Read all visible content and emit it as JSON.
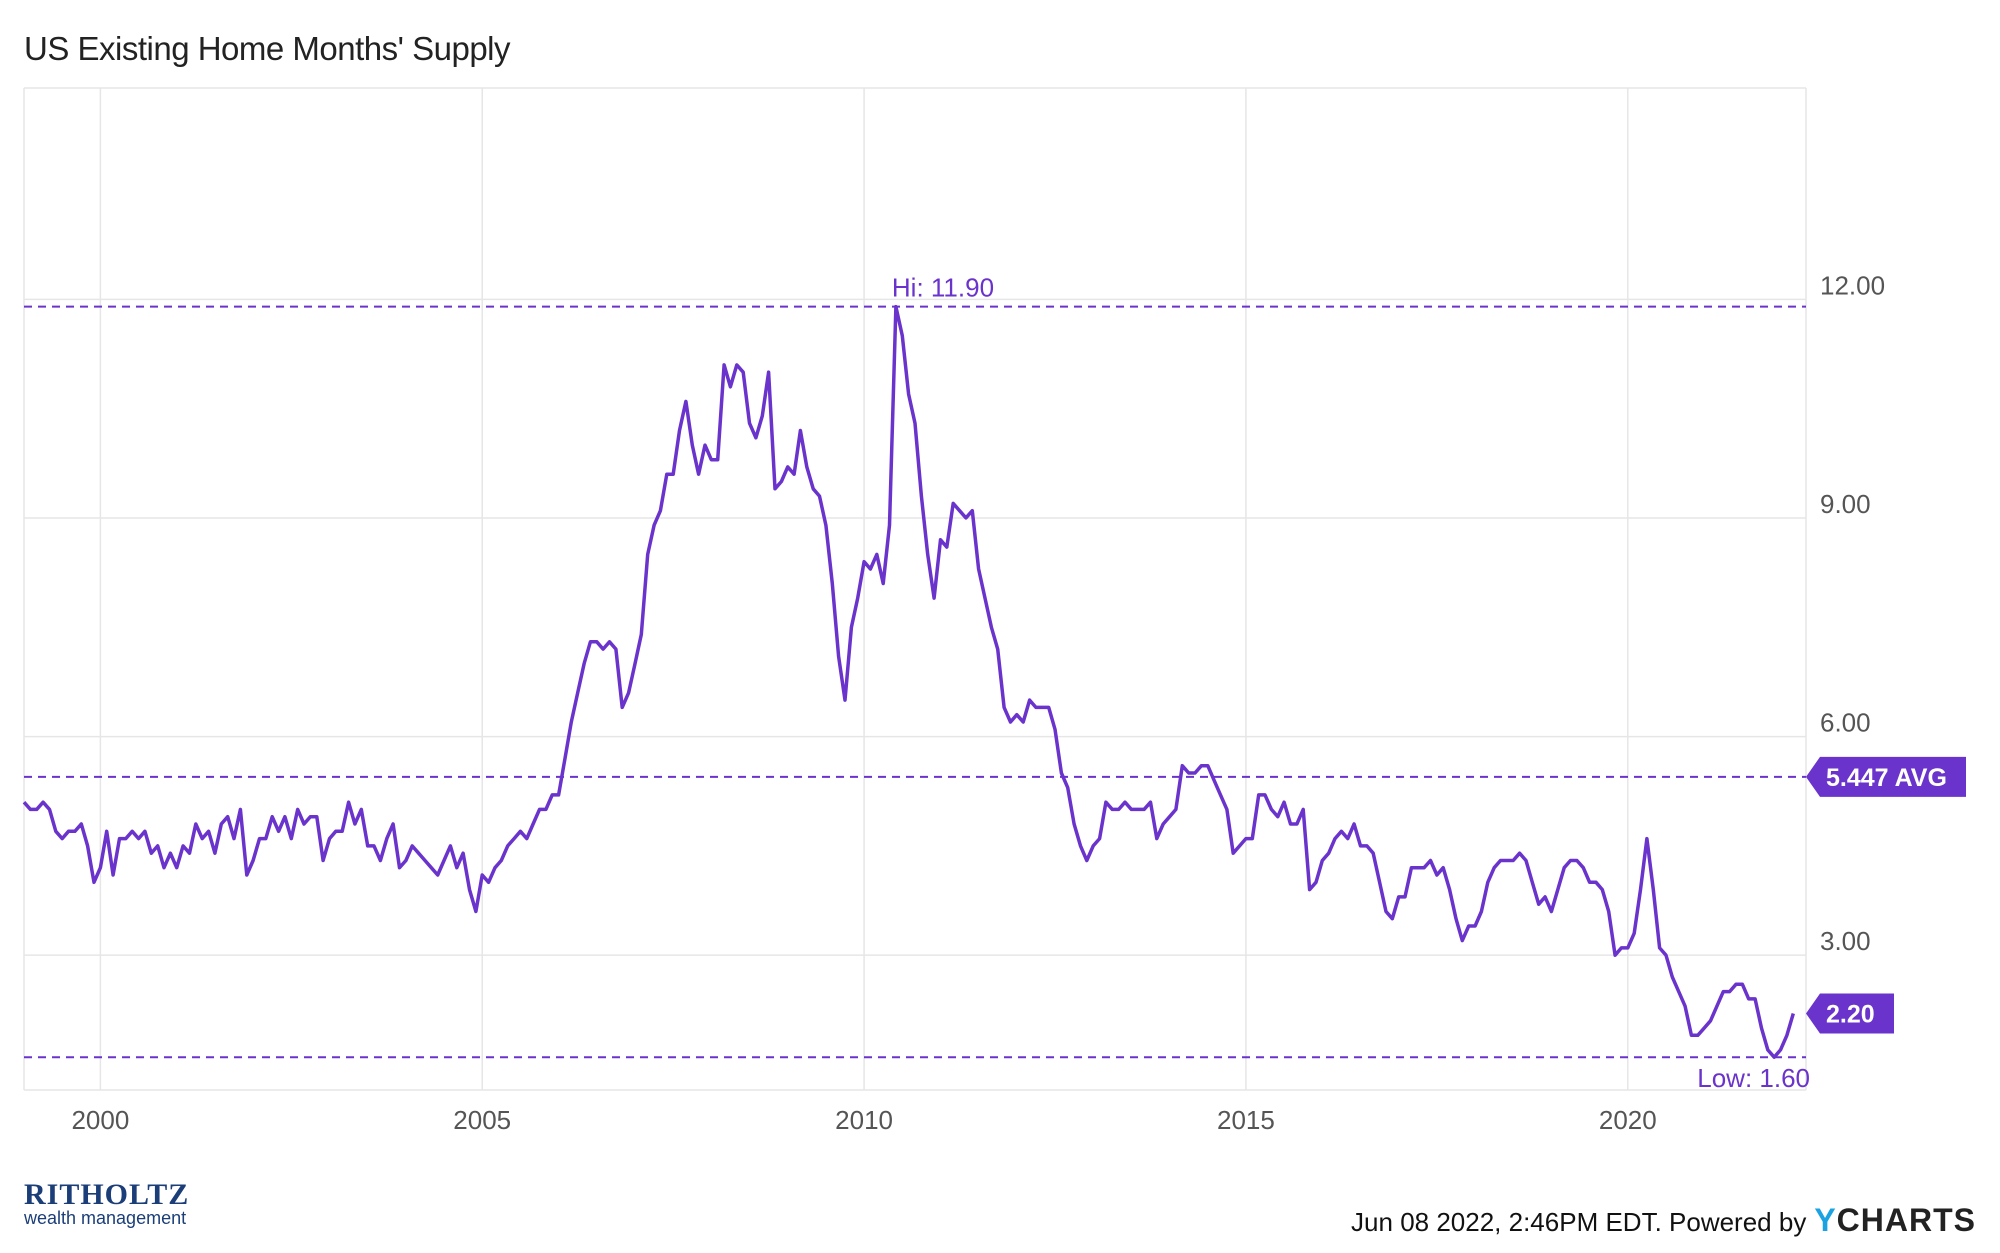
{
  "title": "US Existing Home Months' Supply",
  "footer": {
    "timestamp": "Jun 08 2022, 2:46PM EDT. Powered by",
    "logo_y": "Y",
    "logo_rest": "CHARTS"
  },
  "brand": {
    "name": "RITHOLTZ",
    "sub": "wealth management"
  },
  "colors": {
    "series": "#6a33cc",
    "grid": "#e6e6e6",
    "label_bg": "#6a33cc"
  },
  "chart_data": {
    "type": "line",
    "series": [
      {
        "x_start": "1999-01",
        "frequency": "monthly",
        "values": [
          5.1,
          5.0,
          5.0,
          5.1,
          5.0,
          4.7,
          4.6,
          4.7,
          4.7,
          4.8,
          4.5,
          4.0,
          4.2,
          4.7,
          4.1,
          4.6,
          4.6,
          4.7,
          4.6,
          4.7,
          4.4,
          4.5,
          4.2,
          4.4,
          4.2,
          4.5,
          4.4,
          4.8,
          4.6,
          4.7,
          4.4,
          4.8,
          4.9,
          4.6,
          5.0,
          4.1,
          4.3,
          4.6,
          4.6,
          4.9,
          4.7,
          4.9,
          4.6,
          5.0,
          4.8,
          4.9,
          4.9,
          4.3,
          4.6,
          4.7,
          4.7,
          5.1,
          4.8,
          5.0,
          4.5,
          4.5,
          4.3,
          4.6,
          4.8,
          4.2,
          4.3,
          4.5,
          4.4,
          4.3,
          4.2,
          4.1,
          4.3,
          4.5,
          4.2,
          4.4,
          3.9,
          3.6,
          4.1,
          4.0,
          4.2,
          4.3,
          4.5,
          4.6,
          4.7,
          4.6,
          4.8,
          5.0,
          5.0,
          5.2,
          5.2,
          5.7,
          6.2,
          6.6,
          7.0,
          7.3,
          7.3,
          7.2,
          7.3,
          7.2,
          6.4,
          6.6,
          7.0,
          7.4,
          8.5,
          8.9,
          9.1,
          9.6,
          9.6,
          10.2,
          10.6,
          10.0,
          9.6,
          10.0,
          9.8,
          9.8,
          11.1,
          10.8,
          11.1,
          11.0,
          10.3,
          10.1,
          10.4,
          11.0,
          9.4,
          9.5,
          9.7,
          9.6,
          10.2,
          9.7,
          9.4,
          9.3,
          8.9,
          8.1,
          7.1,
          6.5,
          7.5,
          7.9,
          8.4,
          8.3,
          8.5,
          8.1,
          8.9,
          11.9,
          11.5,
          10.7,
          10.3,
          9.3,
          8.5,
          7.9,
          8.7,
          8.6,
          9.2,
          9.1,
          9.0,
          9.1,
          8.3,
          7.9,
          7.5,
          7.2,
          6.4,
          6.2,
          6.3,
          6.2,
          6.5,
          6.4,
          6.4,
          6.4,
          6.1,
          5.5,
          5.3,
          4.8,
          4.5,
          4.3,
          4.5,
          4.6,
          5.1,
          5.0,
          5.0,
          5.1,
          5.0,
          5.0,
          5.0,
          5.1,
          4.6,
          4.8,
          4.9,
          5.0,
          5.6,
          5.5,
          5.5,
          5.6,
          5.6,
          5.4,
          5.2,
          5.0,
          4.4,
          4.5,
          4.6,
          4.6,
          5.2,
          5.2,
          5.0,
          4.9,
          5.1,
          4.8,
          4.8,
          5.0,
          3.9,
          4.0,
          4.3,
          4.4,
          4.6,
          4.7,
          4.6,
          4.8,
          4.5,
          4.5,
          4.4,
          4.0,
          3.6,
          3.5,
          3.8,
          3.8,
          4.2,
          4.2,
          4.2,
          4.3,
          4.1,
          4.2,
          3.9,
          3.5,
          3.2,
          3.4,
          3.4,
          3.6,
          4.0,
          4.2,
          4.3,
          4.3,
          4.3,
          4.4,
          4.3,
          4.0,
          3.7,
          3.8,
          3.6,
          3.9,
          4.2,
          4.3,
          4.3,
          4.2,
          4.0,
          4.0,
          3.9,
          3.6,
          3.0,
          3.1,
          3.1,
          3.3,
          3.9,
          4.6,
          3.9,
          3.1,
          3.0,
          2.7,
          2.5,
          2.3,
          1.9,
          1.9,
          2.0,
          2.1,
          2.3,
          2.5,
          2.5,
          2.6,
          2.6,
          2.4,
          2.4,
          2.0,
          1.7,
          1.6,
          1.7,
          1.9,
          2.2
        ]
      }
    ],
    "x_ticks": [
      "2000",
      "2005",
      "2010",
      "2015",
      "2020"
    ],
    "y_ticks": [
      "3.00",
      "6.00",
      "9.00",
      "12.00"
    ],
    "ylim": [
      1.15,
      14.9
    ],
    "xlim": [
      "1999-01",
      "2022-05"
    ],
    "annotations": {
      "high": {
        "label": "Hi: 11.90",
        "value": 11.9
      },
      "low": {
        "label": "Low: 1.60",
        "value": 1.6
      },
      "average": {
        "label": "5.447 AVG",
        "value": 5.447
      },
      "last": {
        "label": "2.20",
        "value": 2.2
      }
    },
    "grid": true
  }
}
